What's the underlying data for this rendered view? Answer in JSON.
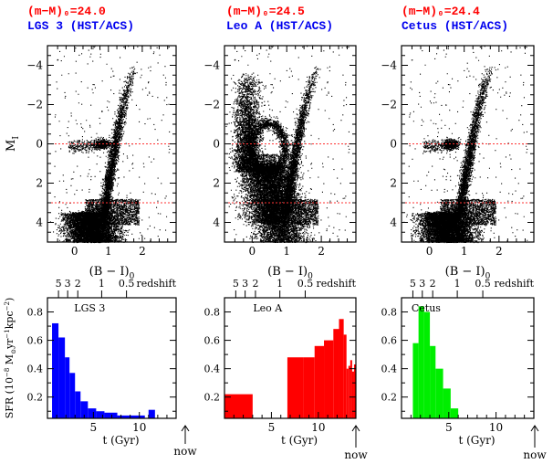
{
  "colors": {
    "cmd_points": "#000000",
    "ref_line": "#ff3333",
    "sfr_lgs3": "#0000ff",
    "sfr_leoa": "#ff0000",
    "sfr_cetus": "#00ee00"
  },
  "cmd_axes": {
    "xlabel": "(B − I)",
    "xlabel_sub": "0",
    "ylabel": "M",
    "ylabel_sub": "I",
    "xlim": [
      -0.8,
      3.0
    ],
    "ylim": [
      5.0,
      -5.0
    ],
    "xticks": [
      "0",
      "1",
      "2"
    ],
    "yticks": [
      "−4",
      "−2",
      "0",
      "2",
      "4"
    ],
    "ref_lines_MI": [
      0,
      3
    ]
  },
  "sfr_axes": {
    "ylabel": "SFR (10",
    "ylabel_exp": "−8",
    "ylabel_rest": " M",
    "ylabel_sun": "⊙",
    "ylabel_rest2": "yr",
    "ylabel_exp2": "−1",
    "ylabel_rest3": "kpc",
    "ylabel_exp3": "−2",
    "ylabel_close": ")",
    "xlabel": "t (Gyr)",
    "xlim": [
      0,
      14
    ],
    "ylim": [
      0.05,
      0.9
    ],
    "xticks": [
      "5",
      "10"
    ],
    "yticks": [
      "0.2",
      "0.4",
      "0.6",
      "0.8"
    ],
    "redshift_ticks": [
      "5",
      "3",
      "2",
      "1",
      "0.5"
    ],
    "redshift_label": "redshift",
    "now_label": "now"
  },
  "panels": [
    {
      "distance_modulus": "(m−M)₀=24.0",
      "galaxy": "LGS 3 (HST/ACS)",
      "sfr_label": "LGS 3"
    },
    {
      "distance_modulus": "(m−M)₀=24.5",
      "galaxy": "Leo A (HST/ACS)",
      "sfr_label": "Leo A"
    },
    {
      "distance_modulus": "(m−M)₀=24.4",
      "galaxy": "Cetus (HST/ACS)",
      "sfr_label": "Cetus"
    }
  ],
  "chart_data": [
    {
      "type": "scatter",
      "title": "LGS 3 (HST/ACS)",
      "xlabel": "(B − I)0",
      "ylabel": "MI",
      "xlim": [
        -0.8,
        3.0
      ],
      "ylim": [
        5.0,
        -5.0
      ],
      "features": {
        "main_sequence_turnoff_MI": 3.5,
        "red_giant_branch_tip": [
          1.8,
          -4.0
        ],
        "red_clump": [
          0.8,
          0.0
        ]
      }
    },
    {
      "type": "scatter",
      "title": "Leo A (HST/ACS)",
      "xlabel": "(B − I)0",
      "ylabel": "MI",
      "xlim": [
        -0.8,
        3.0
      ],
      "ylim": [
        5.0,
        -5.0
      ],
      "features": {
        "main_sequence_turnoff_MI": 1.0,
        "red_giant_branch_tip": [
          1.9,
          -4.0
        ],
        "blue_plume": true
      }
    },
    {
      "type": "scatter",
      "title": "Cetus (HST/ACS)",
      "xlabel": "(B − I)0",
      "ylabel": "MI",
      "xlim": [
        -0.8,
        3.0
      ],
      "ylim": [
        5.0,
        -5.0
      ],
      "features": {
        "main_sequence_turnoff_MI": 3.5,
        "red_giant_branch_tip": [
          1.8,
          -4.0
        ],
        "red_clump": [
          0.6,
          0.0
        ]
      }
    },
    {
      "type": "bar",
      "title": "LGS 3",
      "xlabel": "t (Gyr)",
      "ylabel": "SFR (10^-8 Msun yr^-1 kpc^-2)",
      "xlim": [
        0,
        14
      ],
      "ylim": [
        0.05,
        0.9
      ],
      "bins": [
        [
          0.5,
          1.2,
          0.72
        ],
        [
          1.2,
          1.9,
          0.62
        ],
        [
          1.9,
          2.4,
          0.48
        ],
        [
          2.4,
          3.0,
          0.37
        ],
        [
          3.0,
          3.6,
          0.24
        ],
        [
          3.6,
          4.4,
          0.17
        ],
        [
          4.4,
          5.3,
          0.12
        ],
        [
          5.3,
          6.2,
          0.1
        ],
        [
          6.2,
          7.6,
          0.09
        ],
        [
          7.6,
          10.6,
          0.07
        ],
        [
          11.0,
          11.7,
          0.11
        ]
      ]
    },
    {
      "type": "bar",
      "title": "Leo A",
      "xlabel": "t (Gyr)",
      "ylabel": "SFR (10^-8 Msun yr^-1 kpc^-2)",
      "xlim": [
        0,
        14
      ],
      "ylim": [
        0.05,
        0.9
      ],
      "bins": [
        [
          0.0,
          3.0,
          0.22
        ],
        [
          6.7,
          8.4,
          0.48
        ],
        [
          8.4,
          9.6,
          0.48
        ],
        [
          9.6,
          10.6,
          0.56
        ],
        [
          10.6,
          11.6,
          0.6
        ],
        [
          11.6,
          12.2,
          0.68
        ],
        [
          12.2,
          12.7,
          0.75
        ],
        [
          12.7,
          13.0,
          0.64
        ],
        [
          13.0,
          13.2,
          0.4
        ],
        [
          13.2,
          13.4,
          0.42
        ],
        [
          13.4,
          13.6,
          0.46
        ],
        [
          13.6,
          13.8,
          0.38
        ],
        [
          13.8,
          14.0,
          0.43
        ]
      ]
    },
    {
      "type": "bar",
      "title": "Cetus",
      "xlabel": "t (Gyr)",
      "ylabel": "SFR (10^-8 Msun yr^-1 kpc^-2)",
      "xlim": [
        0,
        14
      ],
      "ylim": [
        0.05,
        0.9
      ],
      "bins": [
        [
          1.2,
          1.8,
          0.58
        ],
        [
          1.8,
          2.4,
          0.84
        ],
        [
          2.4,
          3.0,
          0.8
        ],
        [
          3.0,
          3.6,
          0.56
        ],
        [
          3.6,
          4.4,
          0.4
        ],
        [
          4.4,
          5.2,
          0.26
        ],
        [
          5.2,
          6.0,
          0.12
        ]
      ]
    }
  ]
}
